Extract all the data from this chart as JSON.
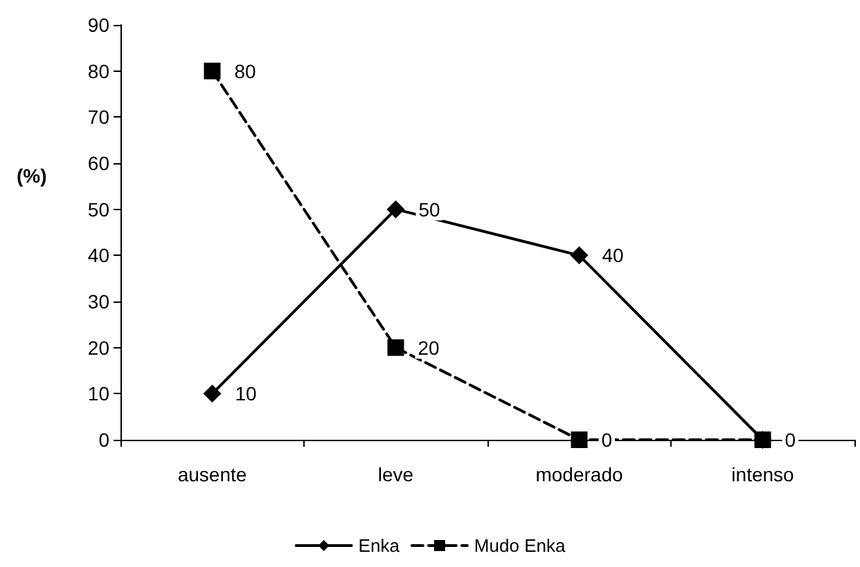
{
  "chart_data": {
    "type": "line",
    "ylabel": "(%)",
    "categories": [
      "ausente",
      "leve",
      "moderado",
      "intenso"
    ],
    "series": [
      {
        "name": "Enka",
        "color": "#000000",
        "values": [
          10,
          50,
          40,
          0
        ],
        "value_labels": [
          "10",
          "50",
          "40",
          null
        ],
        "marker": "diamond",
        "line_style": "solid"
      },
      {
        "name": "Mudo Enka",
        "color": "#000000",
        "values": [
          80,
          20,
          0,
          0
        ],
        "value_labels": [
          "80",
          "20",
          "0",
          "0"
        ],
        "marker": "square",
        "line_style": "dashed"
      }
    ],
    "ylim": [
      0,
      90
    ],
    "yticks": [
      0,
      10,
      20,
      30,
      40,
      50,
      60,
      70,
      80,
      90
    ],
    "grid": false,
    "legend": "bottom"
  }
}
